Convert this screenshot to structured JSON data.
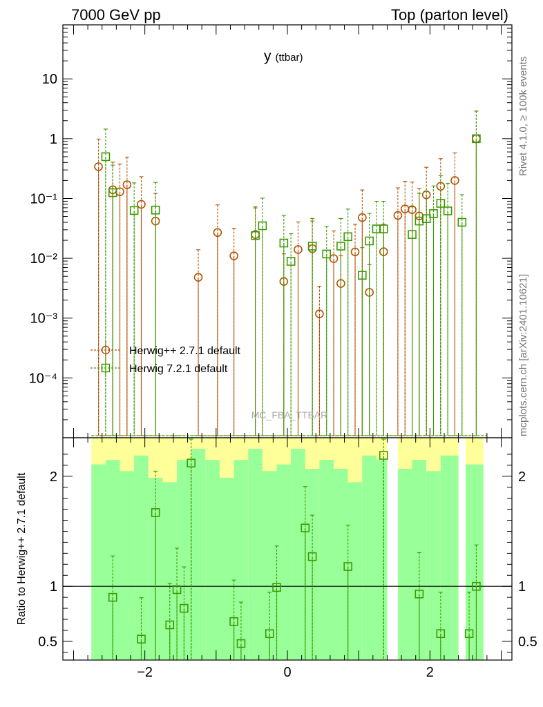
{
  "header": {
    "left": "7000 GeV pp",
    "right": "Top (parton level)"
  },
  "side_labels": {
    "rivet": "Rivet 4.1.0, ≥ 100k events",
    "mcplots": "mcplots.cern.ch [arXiv:2401.10621]"
  },
  "watermark": "MC_FBA_TTBAR",
  "colors": {
    "herwigpp": "#b35000",
    "herwig7": "#3a9a00",
    "band_green": "#99ff99",
    "band_yellow": "#ffff99"
  },
  "chart_data": [
    {
      "type": "scatter",
      "panel": "main",
      "title": "y",
      "title_sub": "(ttbar)",
      "yscale": "log",
      "ylim": [
        1e-05,
        80
      ],
      "xlim": [
        -3.15,
        3.15
      ],
      "y_ticklabels": [
        {
          "value": 10,
          "text": "10"
        },
        {
          "value": 1,
          "text": "1"
        },
        {
          "value": 0.1,
          "text": "10⁻¹"
        },
        {
          "value": 0.01,
          "text": "10⁻²"
        },
        {
          "value": 0.001,
          "text": "10⁻³"
        },
        {
          "value": 0.0001,
          "text": "10⁻⁴"
        }
      ],
      "legend": [
        "Herwig++ 2.7.1 default",
        "Herwig 7.2.1 default"
      ],
      "series": [
        {
          "name": "Herwig++ 2.7.1 default",
          "marker": "circle",
          "x": [
            -2.65,
            -2.45,
            -2.35,
            -2.25,
            -2.05,
            -1.85,
            -1.25,
            -0.98,
            -0.75,
            -0.45,
            -0.05,
            0.15,
            0.35,
            0.45,
            0.65,
            0.75,
            0.95,
            1.05,
            1.15,
            1.35,
            1.55,
            1.65,
            1.75,
            1.85,
            1.95,
            2.15,
            2.35,
            2.65
          ],
          "y": [
            0.34,
            0.14,
            0.13,
            0.17,
            0.08,
            0.042,
            0.0048,
            0.027,
            0.011,
            0.025,
            0.0041,
            0.014,
            0.0145,
            0.00118,
            0.0099,
            0.0038,
            0.0128,
            0.048,
            0.0027,
            0.0129,
            0.052,
            0.067,
            0.065,
            0.051,
            0.115,
            0.16,
            0.2,
            1.0
          ]
        },
        {
          "name": "Herwig 7.2.1 default",
          "marker": "square",
          "x": [
            -2.55,
            -2.45,
            -2.15,
            -1.85,
            -0.45,
            -0.35,
            -0.05,
            0.05,
            0.35,
            0.55,
            0.75,
            0.85,
            1.05,
            1.15,
            1.25,
            1.35,
            1.75,
            1.85,
            1.95,
            2.05,
            2.15,
            2.25,
            2.45,
            2.65
          ],
          "y": [
            0.5,
            0.125,
            0.063,
            0.064,
            0.024,
            0.035,
            0.018,
            0.0089,
            0.016,
            0.0118,
            0.016,
            0.023,
            0.0052,
            0.0195,
            0.031,
            0.031,
            0.025,
            0.042,
            0.046,
            0.056,
            0.083,
            0.062,
            0.04,
            1.0
          ]
        }
      ]
    },
    {
      "type": "scatter",
      "panel": "ratio",
      "ylabel": "Ratio to Herwig++ 2.7.1 default",
      "ylim": [
        0.33,
        2.35
      ],
      "xlim": [
        -3.15,
        3.15
      ],
      "x_ticklabels": [
        {
          "value": -2,
          "text": "−2"
        },
        {
          "value": 0,
          "text": "0"
        },
        {
          "value": 2,
          "text": "2"
        }
      ],
      "y_ticklabels": [
        {
          "value": 2,
          "text": "2"
        },
        {
          "value": 1,
          "text": "1"
        },
        {
          "value": 0.5,
          "text": "0.5"
        }
      ],
      "series": [
        {
          "name": "Herwig 7.2.1 / Herwig++ 2.7.1",
          "marker": "square",
          "x": [
            -2.45,
            -2.05,
            -1.85,
            -1.65,
            -1.55,
            -1.45,
            -1.35,
            -0.75,
            -0.65,
            -0.25,
            -0.15,
            0.25,
            0.35,
            0.85,
            1.35,
            1.85,
            2.15,
            2.55,
            2.65
          ],
          "y": [
            0.9,
            0.52,
            1.67,
            0.65,
            0.97,
            0.8,
            2.12,
            0.68,
            0.48,
            0.57,
            0.99,
            1.53,
            1.27,
            1.18,
            2.19,
            0.93,
            0.57,
            0.57,
            1.0
          ]
        }
      ]
    }
  ]
}
